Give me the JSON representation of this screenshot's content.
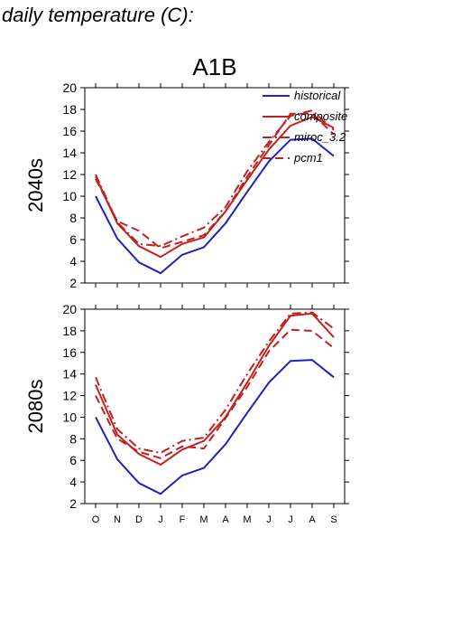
{
  "heading": "daily temperature (C):",
  "chart_data": [
    {
      "type": "line",
      "title": "A1B",
      "ylabel": "2040s",
      "ylim": [
        2,
        20
      ],
      "yticks": [
        2,
        4,
        6,
        8,
        10,
        12,
        14,
        16,
        18,
        20
      ],
      "categories": [
        "O",
        "N",
        "D",
        "J",
        "F",
        "M",
        "A",
        "M",
        "J",
        "J",
        "A",
        "S"
      ],
      "legend": {
        "position": "top-right",
        "entries": [
          "historical",
          "composite",
          "miroc_3.2",
          "pcm1"
        ]
      },
      "colors": {
        "historical": "#2020c0",
        "scenario": "#c02020"
      },
      "series": [
        {
          "name": "historical",
          "style": "solid",
          "color": "#2020c0",
          "values": [
            10.0,
            6.1,
            3.9,
            2.9,
            4.6,
            5.3,
            7.5,
            10.4,
            13.2,
            15.2,
            15.3,
            13.7
          ]
        },
        {
          "name": "composite",
          "style": "solid",
          "color": "#c02020",
          "values": [
            11.8,
            7.5,
            5.4,
            4.4,
            5.6,
            6.2,
            8.6,
            11.5,
            14.3,
            16.5,
            17.3,
            16.3
          ]
        },
        {
          "name": "miroc_3.2",
          "style": "dashdot",
          "color": "#c02020",
          "values": [
            12.0,
            7.6,
            5.6,
            5.4,
            6.3,
            7.1,
            9.0,
            12.3,
            15.0,
            17.4,
            17.9,
            16.1
          ]
        },
        {
          "name": "pcm1",
          "style": "dashed",
          "color": "#c02020",
          "values": [
            11.6,
            7.7,
            6.8,
            5.2,
            5.8,
            6.4,
            8.6,
            11.8,
            14.7,
            17.6,
            17.6,
            15.7
          ]
        }
      ]
    },
    {
      "type": "line",
      "title": "",
      "ylabel": "2080s",
      "ylim": [
        2,
        20
      ],
      "yticks": [
        2,
        4,
        6,
        8,
        10,
        12,
        14,
        16,
        18,
        20
      ],
      "categories": [
        "O",
        "N",
        "D",
        "J",
        "F",
        "M",
        "A",
        "M",
        "J",
        "J",
        "A",
        "S"
      ],
      "series": [
        {
          "name": "historical",
          "style": "solid",
          "color": "#2020c0",
          "values": [
            10.0,
            6.1,
            3.9,
            2.9,
            4.6,
            5.3,
            7.5,
            10.4,
            13.2,
            15.2,
            15.3,
            13.7
          ]
        },
        {
          "name": "composite",
          "style": "solid",
          "color": "#c02020",
          "values": [
            13.0,
            8.4,
            6.6,
            5.6,
            7.0,
            7.8,
            10.0,
            13.2,
            16.6,
            19.4,
            19.6,
            17.4
          ]
        },
        {
          "name": "miroc_3.2",
          "style": "dashdot",
          "color": "#c02020",
          "values": [
            13.7,
            8.9,
            7.1,
            6.7,
            7.8,
            8.1,
            10.7,
            14.0,
            17.0,
            19.6,
            19.7,
            18.2
          ]
        },
        {
          "name": "pcm1",
          "style": "dashed",
          "color": "#c02020",
          "values": [
            12.0,
            8.0,
            6.8,
            6.2,
            7.3,
            7.1,
            9.9,
            12.8,
            16.1,
            18.1,
            18.0,
            16.4
          ]
        }
      ]
    }
  ]
}
